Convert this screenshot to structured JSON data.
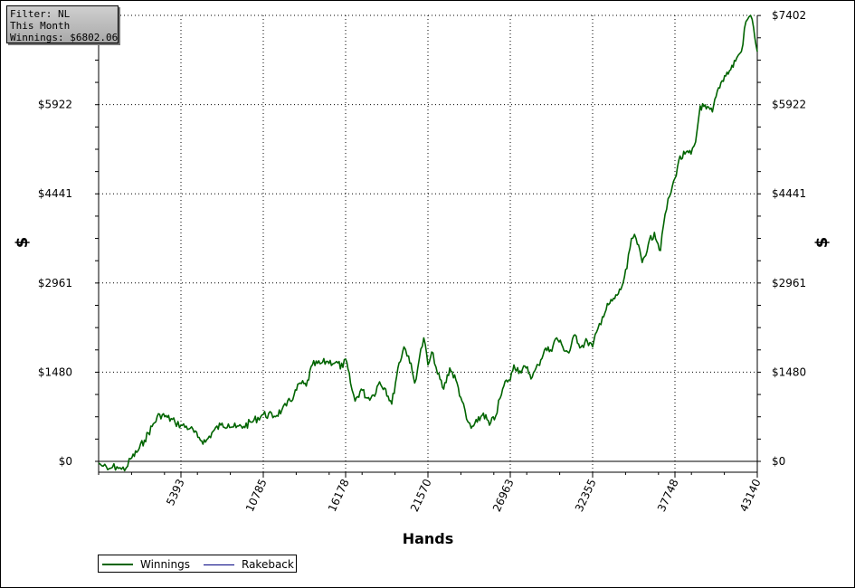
{
  "info": {
    "filter": "Filter: NL",
    "period": "This Month",
    "winnings": "Winnings: $6802.06"
  },
  "colors": {
    "winnings": "#006400",
    "rakeback": "#000080",
    "grid": "#000000"
  },
  "chart_data": {
    "type": "line",
    "xlabel": "Hands",
    "ylabel": "$",
    "xlim": [
      0,
      43140
    ],
    "ylim": [
      -180,
      7402
    ],
    "x_ticks": [
      5393,
      10785,
      16178,
      21570,
      26963,
      32355,
      37748,
      43140
    ],
    "x_tick_labels": [
      "5393",
      "10785",
      "16178",
      "21570",
      "26963",
      "32355",
      "37748",
      "43140"
    ],
    "y_ticks": [
      0,
      1480,
      2961,
      4441,
      5922,
      7402
    ],
    "y_tick_labels": [
      "$0",
      "$1480",
      "$2961",
      "$4441",
      "$5922",
      "$7402"
    ],
    "grid": true,
    "legend_position": "bottom-left",
    "series": [
      {
        "name": "Winnings",
        "x": [
          0,
          300,
          600,
          900,
          1200,
          1500,
          1800,
          2100,
          2500,
          3000,
          3500,
          4000,
          4500,
          5000,
          5393,
          6000,
          6500,
          7000,
          7500,
          8000,
          8500,
          9000,
          9500,
          10000,
          10785,
          11500,
          12000,
          12300,
          12800,
          13200,
          13600,
          14000,
          14500,
          15000,
          15500,
          16000,
          16178,
          16500,
          16800,
          17200,
          17600,
          18000,
          18400,
          18800,
          19200,
          19600,
          20000,
          20300,
          20700,
          21000,
          21300,
          21570,
          21900,
          22200,
          22600,
          23000,
          23400,
          23800,
          24100,
          24400,
          24800,
          25200,
          25600,
          26000,
          26300,
          26700,
          26963,
          27200,
          27600,
          28000,
          28400,
          28800,
          29200,
          29600,
          30000,
          30400,
          30800,
          31200,
          31600,
          32000,
          32355,
          32700,
          33000,
          33400,
          33800,
          34200,
          34600,
          34900,
          35200,
          35600,
          36000,
          36400,
          36800,
          37100,
          37400,
          37748,
          38000,
          38400,
          38800,
          39100,
          39400,
          39800,
          40200,
          40600,
          41000,
          41400,
          41800,
          42100,
          42400,
          42700,
          42900,
          43140
        ],
        "y": [
          -30,
          -80,
          -140,
          -100,
          -90,
          -130,
          -110,
          40,
          150,
          350,
          580,
          780,
          730,
          650,
          600,
          550,
          400,
          320,
          500,
          600,
          620,
          560,
          580,
          650,
          780,
          750,
          850,
          920,
          1100,
          1300,
          1250,
          1600,
          1620,
          1660,
          1640,
          1560,
          1700,
          1300,
          1000,
          1200,
          1050,
          1100,
          1320,
          1200,
          950,
          1550,
          1900,
          1750,
          1300,
          1700,
          2050,
          1600,
          1800,
          1450,
          1200,
          1550,
          1350,
          1000,
          700,
          550,
          650,
          800,
          600,
          750,
          1050,
          1350,
          1350,
          1600,
          1500,
          1550,
          1400,
          1600,
          1850,
          1850,
          2050,
          1900,
          1800,
          2100,
          1900,
          2000,
          1900,
          2200,
          2400,
          2600,
          2700,
          2850,
          3200,
          3700,
          3700,
          3300,
          3600,
          3800,
          3500,
          4100,
          4400,
          4700,
          5000,
          5100,
          5100,
          5300,
          5900,
          5850,
          5800,
          6200,
          6400,
          6500,
          6700,
          6800,
          7300,
          7402,
          7200,
          6802
        ]
      },
      {
        "name": "Rakeback",
        "x": [
          0,
          43140
        ],
        "y": [
          0,
          0
        ]
      }
    ]
  }
}
